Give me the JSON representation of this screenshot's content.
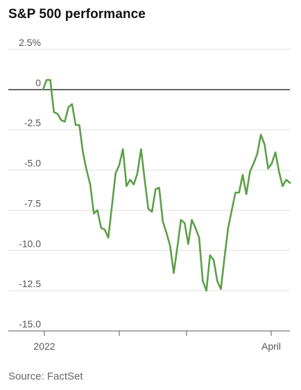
{
  "header": {
    "title": "S&P 500 performance"
  },
  "footer": {
    "source": "Source: FactSet"
  },
  "chart_data": {
    "type": "line",
    "title": "S&P 500 performance",
    "xlabel": "",
    "ylabel": "",
    "ylim": [
      -15.0,
      2.5
    ],
    "y_ticks": [
      2.5,
      0,
      -2.5,
      -5.0,
      -7.5,
      -10.0,
      -12.5,
      -15.0
    ],
    "y_tick_labels": [
      "2.5%",
      "0",
      "-2.5",
      "-5.0",
      "-7.5",
      "-10.0",
      "-12.5",
      "-15.0"
    ],
    "x_tick_labels": [
      "2022",
      "",
      "",
      "April"
    ],
    "grid": true,
    "line_color": "#5b9f47",
    "series": [
      {
        "name": "",
        "values": [
          0.0,
          0.6,
          0.6,
          -1.4,
          -1.5,
          -1.9,
          -2.0,
          -1.1,
          -0.9,
          -2.2,
          -2.2,
          -3.9,
          -5.0,
          -5.9,
          -7.7,
          -7.5,
          -8.6,
          -8.7,
          -9.2,
          -7.2,
          -5.2,
          -4.7,
          -3.7,
          -6.0,
          -5.6,
          -5.9,
          -5.2,
          -3.7,
          -5.6,
          -7.4,
          -7.6,
          -6.2,
          -6.1,
          -8.2,
          -8.9,
          -9.7,
          -11.4,
          -9.8,
          -8.1,
          -8.3,
          -9.6,
          -8.1,
          -8.6,
          -9.2,
          -11.9,
          -12.5,
          -10.3,
          -10.6,
          -11.9,
          -12.4,
          -10.4,
          -8.6,
          -7.5,
          -6.4,
          -6.4,
          -5.3,
          -6.5,
          -5.1,
          -4.6,
          -4.0,
          -2.8,
          -3.4,
          -4.9,
          -4.6,
          -3.9,
          -5.1,
          -6.0,
          -5.6,
          -5.8
        ]
      }
    ]
  }
}
